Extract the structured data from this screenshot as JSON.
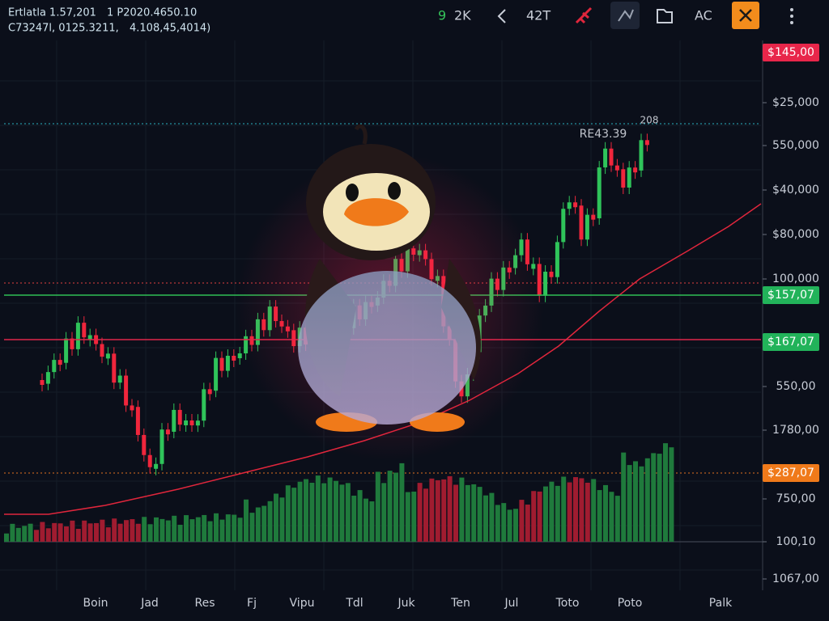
{
  "header": {
    "line1": [
      "Ertlatla 1.57,201",
      "1 P2020.4650.10"
    ],
    "line2": [
      "C73247l, 0125.3211,",
      "4.108,45,4014)"
    ]
  },
  "toolbar": {
    "count_prefix": "9",
    "count": "2K",
    "ticker": "42T",
    "mode": "AC"
  },
  "price_axis": [
    "$145,00",
    "$25,000",
    "550,000",
    "$40,000",
    "$80,000",
    "100,000",
    "$157,07",
    "$167,07",
    "550,00",
    "1780,00",
    "$287,07",
    "750,00",
    "100,10",
    "1067,00"
  ],
  "annotations": [
    "RE43.39",
    "208"
  ],
  "time_axis": [
    "Boin",
    "Jad",
    "Res",
    "Fj",
    "Vipu",
    "Tdl",
    "Juk",
    "Ten",
    "Jul",
    "Toto",
    "Poto",
    "Palk"
  ]
}
